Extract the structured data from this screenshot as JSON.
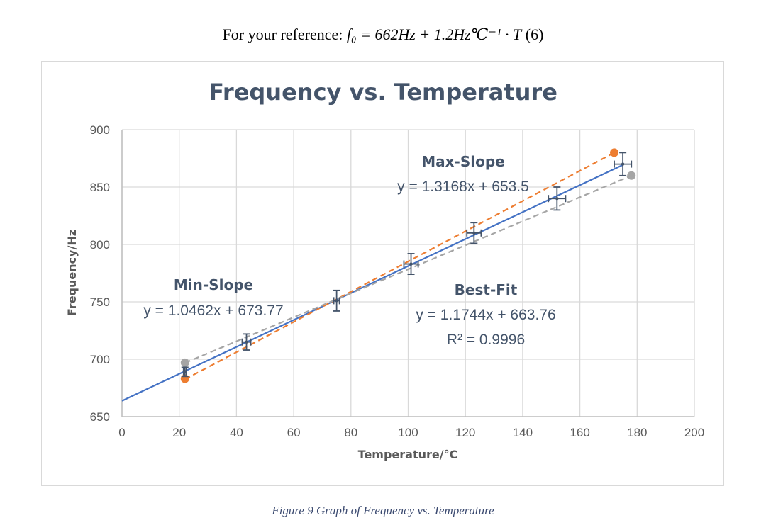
{
  "reference": {
    "prefix": "For your reference: ",
    "formula": "f₀ = 662Hz + 1.2Hz℃⁻¹ · T",
    "eq_number": " (6)"
  },
  "caption": "Figure 9 Graph of Frequency vs. Temperature",
  "chart_data": {
    "type": "scatter",
    "title": "Frequency vs. Temperature",
    "xlabel": "Temperature/°C",
    "ylabel": "Frequency/Hz",
    "xlim": [
      0,
      200
    ],
    "ylim": [
      650,
      900
    ],
    "xticks": [
      0,
      20,
      40,
      60,
      80,
      100,
      120,
      140,
      160,
      180,
      200
    ],
    "yticks": [
      650,
      700,
      750,
      800,
      850,
      900
    ],
    "grid": true,
    "measurements": {
      "x": [
        22,
        43.5,
        75,
        101,
        123,
        152,
        175
      ],
      "y": [
        689,
        715,
        751,
        783,
        810,
        840,
        870
      ],
      "x_err": [
        0.5,
        1.5,
        1.0,
        2.5,
        2.5,
        3.0,
        3.0
      ],
      "y_err": [
        4,
        7,
        9,
        9,
        9,
        10,
        10
      ],
      "color": "#44546a"
    },
    "lines": [
      {
        "label": "Best-Fit",
        "equation": "y = 1.1744x + 663.76",
        "r2": "R² = 0.9996",
        "slope": 1.1744,
        "intercept": 663.76,
        "x_range": [
          0,
          175
        ],
        "style": "solid",
        "color": "#4472c4"
      },
      {
        "label": "Max-Slope",
        "equation": "y = 1.3168x + 653.5",
        "slope": 1.3168,
        "intercept": 653.5,
        "x_range": [
          22,
          172
        ],
        "style": "dashed",
        "color": "#ed7d31"
      },
      {
        "label": "Min-Slope",
        "equation": "y = 1.0462x + 673.77",
        "slope": 1.0462,
        "intercept": 673.77,
        "x_range": [
          22,
          178
        ],
        "style": "dashed",
        "color": "#a5a5a5"
      }
    ],
    "endpoints": [
      {
        "line": "Max-Slope",
        "x": 22,
        "y": 683,
        "color": "#ed7d31"
      },
      {
        "line": "Max-Slope",
        "x": 172,
        "y": 880,
        "color": "#ed7d31"
      },
      {
        "line": "Min-Slope",
        "x": 22,
        "y": 697,
        "color": "#a5a5a5"
      },
      {
        "line": "Min-Slope",
        "x": 178,
        "y": 860,
        "color": "#a5a5a5"
      }
    ],
    "colors": {
      "grid": "#d9d9d9",
      "axis": "#bfbfbf",
      "text": "#44546a"
    }
  }
}
